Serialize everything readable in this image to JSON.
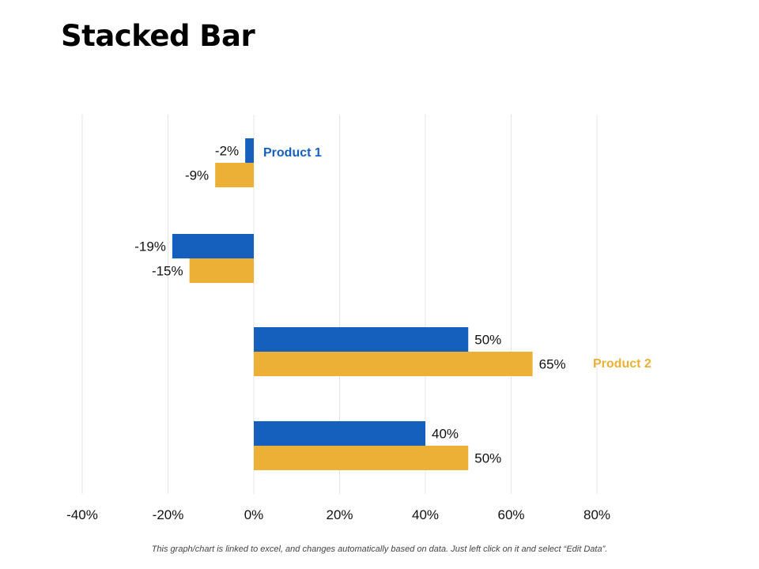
{
  "title": "Stacked Bar",
  "footnote": "This graph/chart is linked to excel, and changes automatically based on data. Just left click on it and select “Edit Data”.",
  "chart_data": {
    "type": "bar",
    "orientation": "horizontal",
    "xlim": [
      -40,
      80
    ],
    "x_ticks": [
      -40,
      -20,
      0,
      20,
      40,
      60,
      80
    ],
    "x_tick_labels": [
      "-40%",
      "-20%",
      "0%",
      "20%",
      "40%",
      "60%",
      "80%"
    ],
    "grid": "vertical",
    "series": [
      {
        "name": "Product 1",
        "color": "#1560BD",
        "values": [
          -2,
          -19,
          50,
          40
        ],
        "labels": [
          "-2%",
          "-19%",
          "50%",
          "40%"
        ]
      },
      {
        "name": "Product 2",
        "color": "#EBB035",
        "values": [
          -9,
          -15,
          65,
          50
        ],
        "labels": [
          "-9%",
          "-15%",
          "65%",
          "50%"
        ]
      }
    ]
  }
}
